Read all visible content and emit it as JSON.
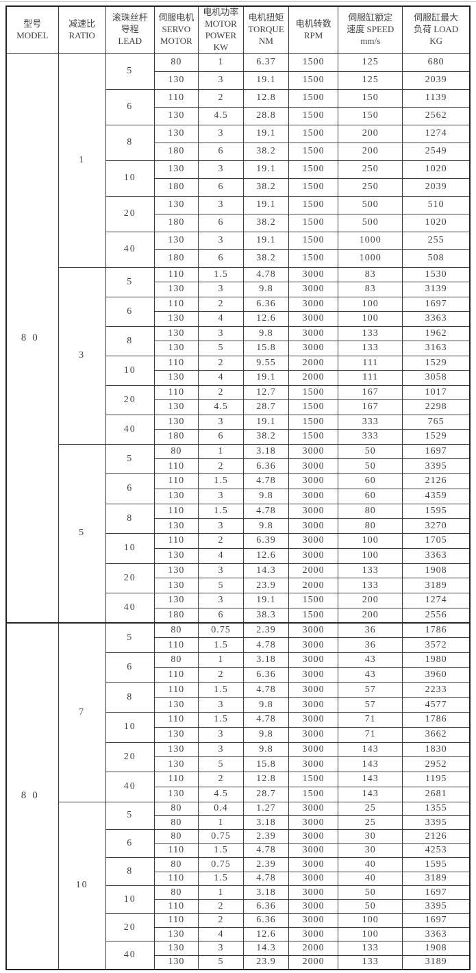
{
  "table": {
    "headers": [
      {
        "key": "model",
        "lines": [
          "型号",
          "MODEL"
        ]
      },
      {
        "key": "ratio",
        "lines": [
          "减速比",
          "RATIO"
        ]
      },
      {
        "key": "lead",
        "lines": [
          "滚珠丝杆",
          "导程",
          "LEAD"
        ]
      },
      {
        "key": "servo",
        "lines": [
          "伺服电机",
          "SERVO",
          "MOTOR"
        ]
      },
      {
        "key": "power",
        "lines": [
          "电机功率",
          "MOTOR",
          "POWER KW"
        ]
      },
      {
        "key": "torque",
        "lines": [
          "电机扭矩",
          "TORQUE",
          "NM"
        ]
      },
      {
        "key": "rpm",
        "lines": [
          "电机转数",
          "RPM"
        ]
      },
      {
        "key": "speed",
        "lines": [
          "伺服缸额定",
          "速度 SPEED",
          "mm/s"
        ]
      },
      {
        "key": "load",
        "lines": [
          "伺服缸最大",
          "负荷 LOAD",
          "KG"
        ]
      }
    ],
    "column_keys": [
      "servo_motor",
      "motor_power_kw",
      "torque_nm",
      "rpm",
      "speed_mm_s",
      "load_kg"
    ],
    "blocks": [
      {
        "model": "80",
        "ratios": [
          {
            "ratio": "1",
            "leads": [
              {
                "lead": "5",
                "rows": [
                  [
                    "80",
                    "1",
                    "6.37",
                    "1500",
                    "125",
                    "680"
                  ],
                  [
                    "130",
                    "3",
                    "19.1",
                    "1500",
                    "125",
                    "2039"
                  ]
                ]
              },
              {
                "lead": "6",
                "rows": [
                  [
                    "110",
                    "2",
                    "12.8",
                    "1500",
                    "150",
                    "1139"
                  ],
                  [
                    "130",
                    "4.5",
                    "28.8",
                    "1500",
                    "150",
                    "2562"
                  ]
                ]
              },
              {
                "lead": "8",
                "rows": [
                  [
                    "130",
                    "3",
                    "19.1",
                    "1500",
                    "200",
                    "1274"
                  ],
                  [
                    "180",
                    "6",
                    "38.2",
                    "1500",
                    "200",
                    "2549"
                  ]
                ]
              },
              {
                "lead": "10",
                "rows": [
                  [
                    "130",
                    "3",
                    "19.1",
                    "1500",
                    "250",
                    "1020"
                  ],
                  [
                    "180",
                    "6",
                    "38.2",
                    "1500",
                    "250",
                    "2039"
                  ]
                ]
              },
              {
                "lead": "20",
                "rows": [
                  [
                    "130",
                    "3",
                    "19.1",
                    "1500",
                    "500",
                    "510"
                  ],
                  [
                    "180",
                    "6",
                    "38.2",
                    "1500",
                    "500",
                    "1020"
                  ]
                ]
              },
              {
                "lead": "40",
                "rows": [
                  [
                    "130",
                    "3",
                    "19.1",
                    "1500",
                    "1000",
                    "255"
                  ],
                  [
                    "180",
                    "6",
                    "38.2",
                    "1500",
                    "1000",
                    "508"
                  ]
                ]
              }
            ]
          },
          {
            "ratio": "3",
            "leads": [
              {
                "lead": "5",
                "rows": [
                  [
                    "110",
                    "1.5",
                    "4.78",
                    "3000",
                    "83",
                    "1530"
                  ],
                  [
                    "130",
                    "3",
                    "9.8",
                    "3000",
                    "83",
                    "3139"
                  ]
                ]
              },
              {
                "lead": "6",
                "rows": [
                  [
                    "110",
                    "2",
                    "6.36",
                    "3000",
                    "100",
                    "1697"
                  ],
                  [
                    "130",
                    "4",
                    "12.6",
                    "3000",
                    "100",
                    "3363"
                  ]
                ]
              },
              {
                "lead": "8",
                "rows": [
                  [
                    "130",
                    "3",
                    "9.8",
                    "3000",
                    "133",
                    "1962"
                  ],
                  [
                    "130",
                    "5",
                    "15.8",
                    "3000",
                    "133",
                    "3163"
                  ]
                ]
              },
              {
                "lead": "10",
                "rows": [
                  [
                    "110",
                    "2",
                    "9.55",
                    "2000",
                    "111",
                    "1529"
                  ],
                  [
                    "130",
                    "4",
                    "19.1",
                    "2000",
                    "111",
                    "3058"
                  ]
                ]
              },
              {
                "lead": "20",
                "rows": [
                  [
                    "110",
                    "2",
                    "12.7",
                    "1500",
                    "167",
                    "1017"
                  ],
                  [
                    "130",
                    "4.5",
                    "28.7",
                    "1500",
                    "167",
                    "2298"
                  ]
                ]
              },
              {
                "lead": "40",
                "rows": [
                  [
                    "130",
                    "3",
                    "19.1",
                    "1500",
                    "333",
                    "765"
                  ],
                  [
                    "180",
                    "6",
                    "38.2",
                    "1500",
                    "333",
                    "1529"
                  ]
                ]
              }
            ]
          },
          {
            "ratio": "5",
            "leads": [
              {
                "lead": "5",
                "rows": [
                  [
                    "80",
                    "1",
                    "3.18",
                    "3000",
                    "50",
                    "1697"
                  ],
                  [
                    "110",
                    "2",
                    "6.36",
                    "3000",
                    "50",
                    "3395"
                  ]
                ]
              },
              {
                "lead": "6",
                "rows": [
                  [
                    "110",
                    "1.5",
                    "4.78",
                    "3000",
                    "60",
                    "2126"
                  ],
                  [
                    "130",
                    "3",
                    "9.8",
                    "3000",
                    "60",
                    "4359"
                  ]
                ]
              },
              {
                "lead": "8",
                "rows": [
                  [
                    "110",
                    "1.5",
                    "4.78",
                    "3000",
                    "80",
                    "1595"
                  ],
                  [
                    "130",
                    "3",
                    "9.8",
                    "3000",
                    "80",
                    "3270"
                  ]
                ]
              },
              {
                "lead": "10",
                "rows": [
                  [
                    "110",
                    "2",
                    "6.39",
                    "3000",
                    "100",
                    "1705"
                  ],
                  [
                    "130",
                    "4",
                    "12.6",
                    "3000",
                    "100",
                    "3363"
                  ]
                ]
              },
              {
                "lead": "20",
                "rows": [
                  [
                    "130",
                    "3",
                    "14.3",
                    "2000",
                    "133",
                    "1908"
                  ],
                  [
                    "130",
                    "5",
                    "23.9",
                    "2000",
                    "133",
                    "3189"
                  ]
                ]
              },
              {
                "lead": "40",
                "rows": [
                  [
                    "130",
                    "3",
                    "19.1",
                    "1500",
                    "200",
                    "1274"
                  ],
                  [
                    "180",
                    "6",
                    "38.3",
                    "1500",
                    "200",
                    "2556"
                  ]
                ]
              }
            ]
          }
        ]
      },
      {
        "model": "80",
        "ratios": [
          {
            "ratio": "7",
            "leads": [
              {
                "lead": "5",
                "rows": [
                  [
                    "80",
                    "0.75",
                    "2.39",
                    "3000",
                    "36",
                    "1786"
                  ],
                  [
                    "110",
                    "1.5",
                    "4.78",
                    "3000",
                    "36",
                    "3572"
                  ]
                ]
              },
              {
                "lead": "6",
                "rows": [
                  [
                    "80",
                    "1",
                    "3.18",
                    "3000",
                    "43",
                    "1980"
                  ],
                  [
                    "110",
                    "2",
                    "6.36",
                    "3000",
                    "43",
                    "3960"
                  ]
                ]
              },
              {
                "lead": "8",
                "rows": [
                  [
                    "110",
                    "1.5",
                    "4.78",
                    "3000",
                    "57",
                    "2233"
                  ],
                  [
                    "130",
                    "3",
                    "9.8",
                    "3000",
                    "57",
                    "4577"
                  ]
                ]
              },
              {
                "lead": "10",
                "rows": [
                  [
                    "110",
                    "1.5",
                    "4.78",
                    "3000",
                    "71",
                    "1786"
                  ],
                  [
                    "130",
                    "3",
                    "9.8",
                    "3000",
                    "71",
                    "3662"
                  ]
                ]
              },
              {
                "lead": "20",
                "rows": [
                  [
                    "130",
                    "3",
                    "9.8",
                    "3000",
                    "143",
                    "1830"
                  ],
                  [
                    "130",
                    "5",
                    "15.8",
                    "3000",
                    "143",
                    "2952"
                  ]
                ]
              },
              {
                "lead": "40",
                "rows": [
                  [
                    "110",
                    "2",
                    "12.8",
                    "1500",
                    "143",
                    "1195"
                  ],
                  [
                    "130",
                    "4.5",
                    "28.7",
                    "1500",
                    "143",
                    "2681"
                  ]
                ]
              }
            ]
          },
          {
            "ratio": "10",
            "leads": [
              {
                "lead": "5",
                "rows": [
                  [
                    "80",
                    "0.4",
                    "1.27",
                    "3000",
                    "25",
                    "1355"
                  ],
                  [
                    "80",
                    "1",
                    "3.18",
                    "3000",
                    "25",
                    "3395"
                  ]
                ]
              },
              {
                "lead": "6",
                "rows": [
                  [
                    "80",
                    "0.75",
                    "2.39",
                    "3000",
                    "30",
                    "2126"
                  ],
                  [
                    "110",
                    "1.5",
                    "4.78",
                    "3000",
                    "30",
                    "4253"
                  ]
                ]
              },
              {
                "lead": "8",
                "rows": [
                  [
                    "80",
                    "0.75",
                    "2.39",
                    "3000",
                    "40",
                    "1595"
                  ],
                  [
                    "110",
                    "1.5",
                    "4.78",
                    "3000",
                    "40",
                    "3189"
                  ]
                ]
              },
              {
                "lead": "10",
                "rows": [
                  [
                    "80",
                    "1",
                    "3.18",
                    "3000",
                    "50",
                    "1697"
                  ],
                  [
                    "110",
                    "2",
                    "6.36",
                    "3000",
                    "50",
                    "3395"
                  ]
                ]
              },
              {
                "lead": "20",
                "rows": [
                  [
                    "110",
                    "2",
                    "6.36",
                    "3000",
                    "100",
                    "1697"
                  ],
                  [
                    "130",
                    "4",
                    "12.6",
                    "3000",
                    "100",
                    "3363"
                  ]
                ]
              },
              {
                "lead": "40",
                "rows": [
                  [
                    "130",
                    "3",
                    "14.3",
                    "2000",
                    "133",
                    "1908"
                  ],
                  [
                    "130",
                    "5",
                    "23.9",
                    "2000",
                    "133",
                    "3189"
                  ]
                ]
              }
            ]
          }
        ]
      }
    ]
  }
}
